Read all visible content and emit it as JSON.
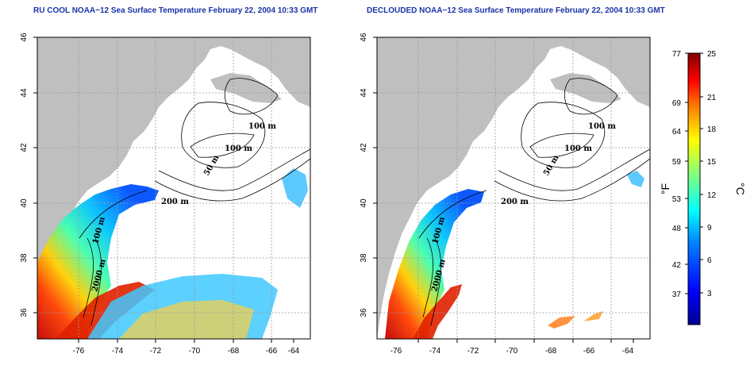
{
  "panels": [
    {
      "title": "RU COOL NOAA−12 Sea Surface Temperature February 22, 2004 10:33 GMT",
      "x_ticks": [
        "-76",
        "-74",
        "-72",
        "-70",
        "-68",
        "-66",
        "-64"
      ],
      "y_ticks": [
        "36",
        "38",
        "40",
        "42",
        "44",
        "46"
      ],
      "contour_labels": [
        "100 m",
        "100 m",
        "50 m",
        "200 m",
        "100 m",
        "2000 m"
      ]
    },
    {
      "title": "DECLOUDED NOAA−12 Sea Surface Temperature February 22, 2004 10:33 GMT",
      "x_ticks": [
        "-76",
        "-74",
        "-72",
        "-70",
        "-68",
        "-66",
        "-64"
      ],
      "y_ticks": [
        "36",
        "38",
        "40",
        "42",
        "44",
        "46"
      ],
      "contour_labels": [
        "100 m",
        "100 m",
        "50 m",
        "200 m",
        "100 m",
        "2000 m"
      ]
    }
  ],
  "colorbar": {
    "fahrenheit_ticks": [
      "77",
      "69",
      "64",
      "59",
      "53",
      "48",
      "42",
      "37"
    ],
    "celsius_ticks": [
      "25",
      "21",
      "18",
      "15",
      "12",
      "9",
      "6",
      "3"
    ],
    "fahrenheit_unit": "°F",
    "celsius_unit": "°C",
    "colors": [
      "#00008f",
      "#0000ff",
      "#0080ff",
      "#00ffff",
      "#80ff80",
      "#ffff00",
      "#ff8000",
      "#ff0000",
      "#800000"
    ]
  },
  "colors": {
    "land": "#bfbfbf",
    "title": "#1a33a6",
    "grid": "#9a9a9a"
  }
}
